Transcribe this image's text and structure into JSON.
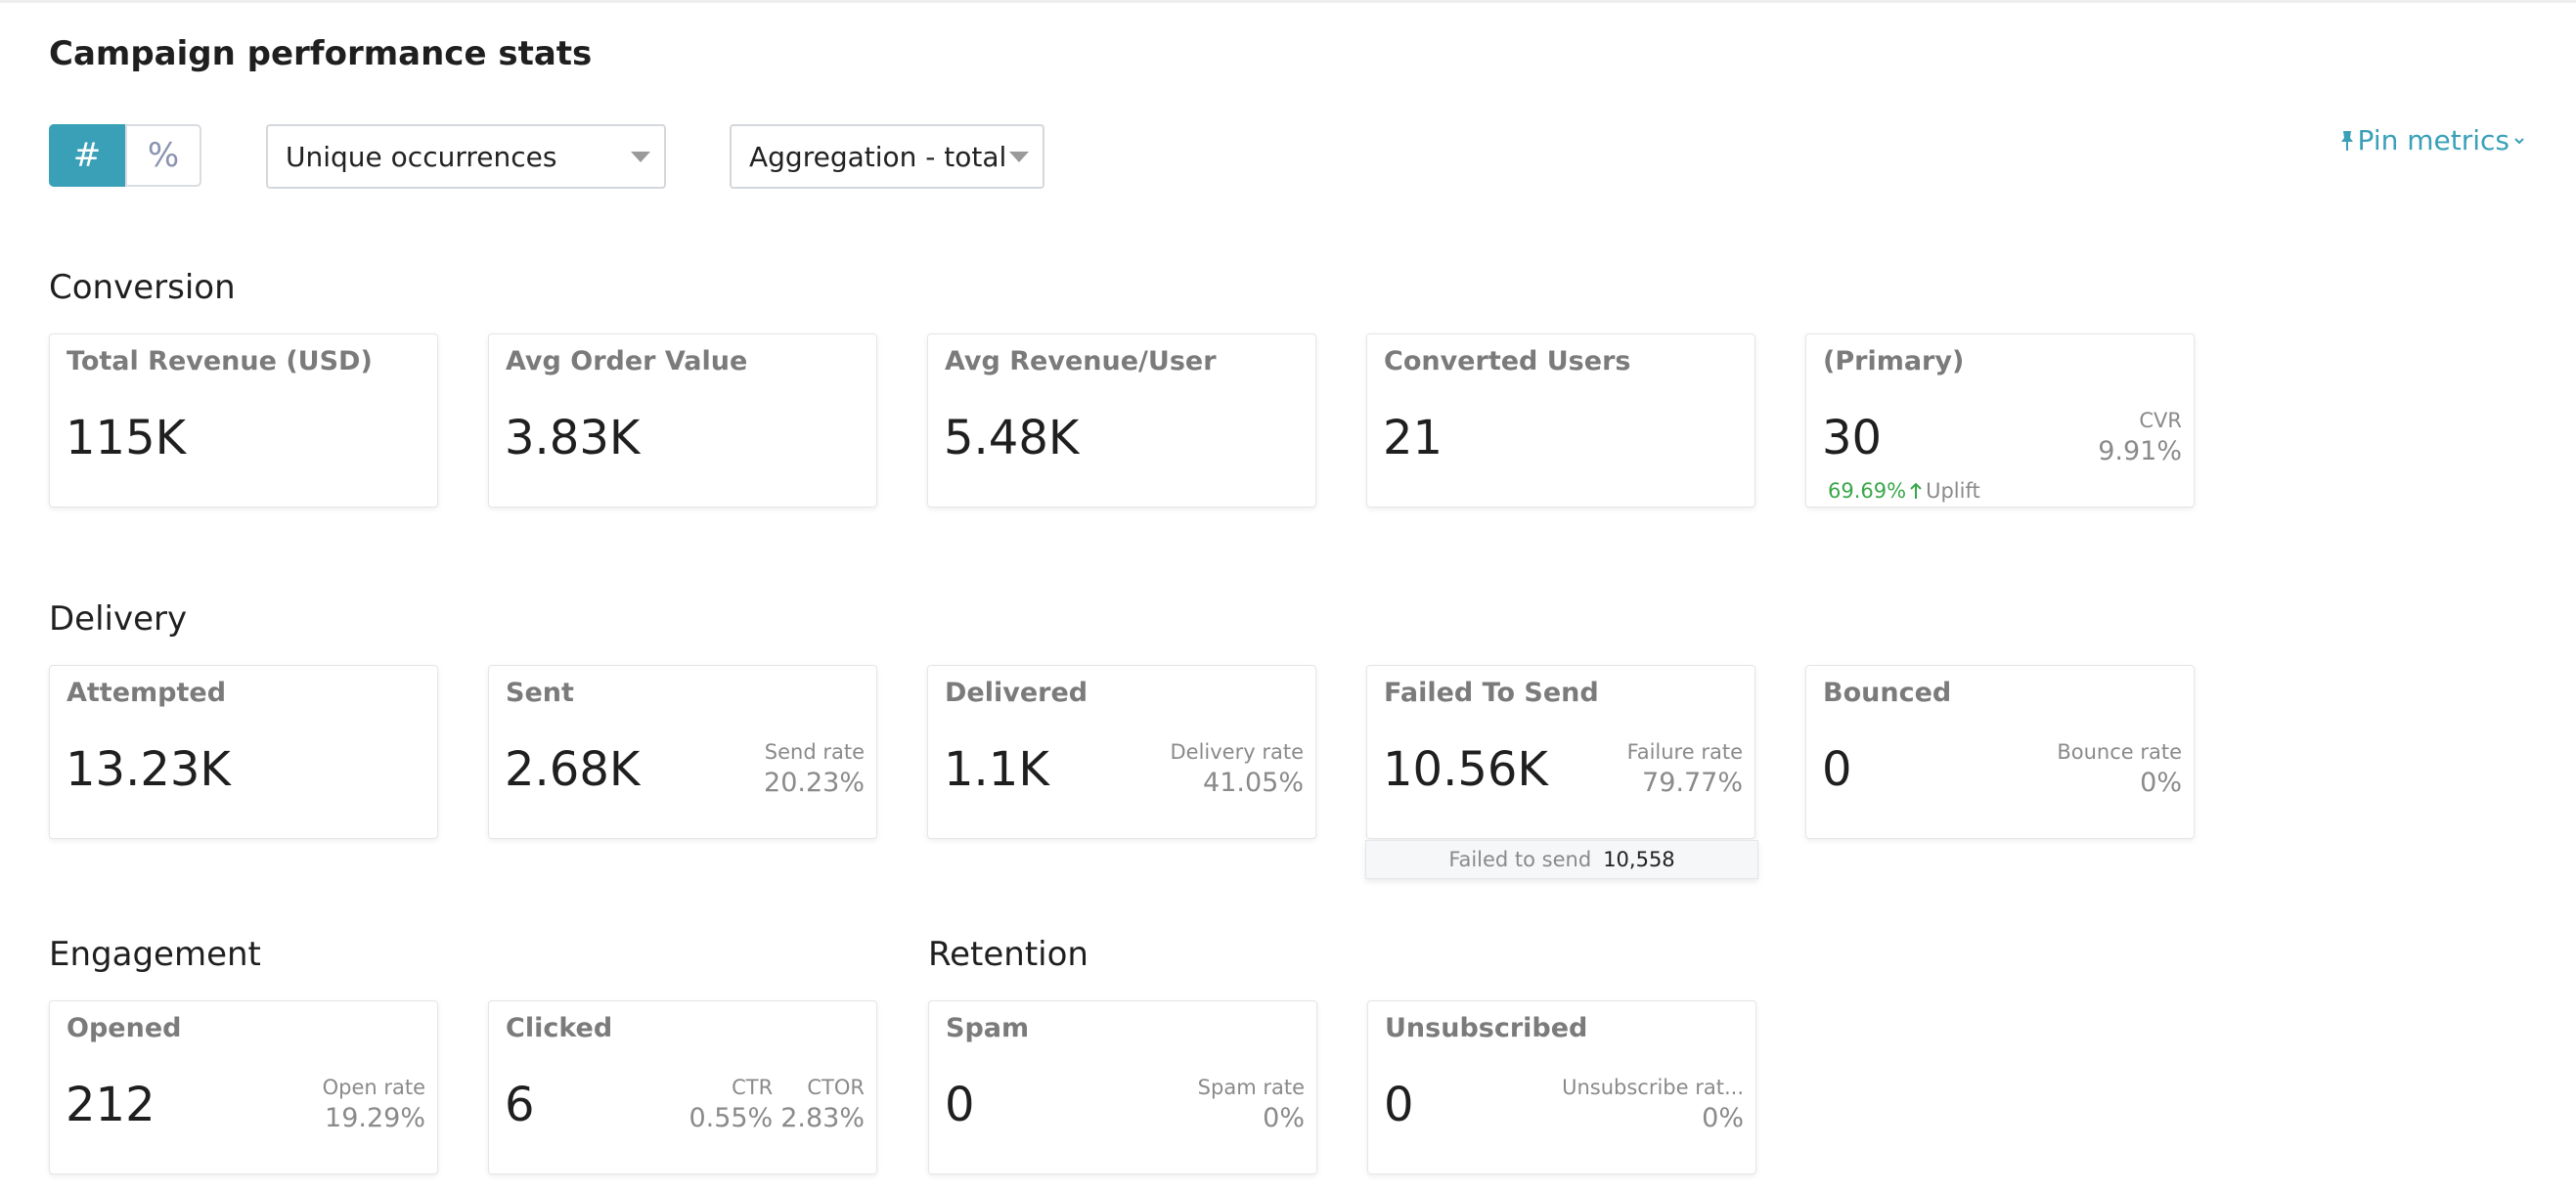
{
  "header": {
    "title": "Campaign performance stats"
  },
  "controls": {
    "toggle": [
      "#",
      "%"
    ],
    "occurrence": "Unique occurrences",
    "aggregation": "Aggregation - total",
    "pin": "Pin metrics"
  },
  "sections": [
    {
      "title": "Conversion",
      "cards": [
        {
          "label": "Total Revenue (USD)",
          "value": "115K"
        },
        {
          "label": "Avg Order Value",
          "value": "3.83K"
        },
        {
          "label": "Avg Revenue/User",
          "value": "5.48K"
        },
        {
          "label": "Converted Users",
          "value": "21"
        },
        {
          "label": "(Primary)",
          "value": "30",
          "side": [
            {
              "label": "CVR",
              "value": "9.91%"
            }
          ],
          "uplift": {
            "value": "69.69%",
            "label": "Uplift"
          }
        }
      ]
    },
    {
      "title": "Delivery",
      "cards": [
        {
          "label": "Attempted",
          "value": "13.23K"
        },
        {
          "label": "Sent",
          "value": "2.68K",
          "side": [
            {
              "label": "Send rate",
              "value": "20.23%"
            }
          ]
        },
        {
          "label": "Delivered",
          "value": "1.1K",
          "side": [
            {
              "label": "Delivery rate",
              "value": "41.05%"
            }
          ]
        },
        {
          "label": "Failed To Send",
          "value": "10.56K",
          "side": [
            {
              "label": "Failure rate",
              "value": "79.77%"
            }
          ],
          "tooltip": {
            "label": "Failed to send",
            "value": "10,558"
          }
        },
        {
          "label": "Bounced",
          "value": "0",
          "side": [
            {
              "label": "Bounce rate",
              "value": "0%"
            }
          ]
        }
      ]
    },
    {
      "title": "Engagement",
      "cards": [
        {
          "label": "Opened",
          "value": "212",
          "side": [
            {
              "label": "Open rate",
              "value": "19.29%"
            }
          ]
        },
        {
          "label": "Clicked",
          "value": "6",
          "side": [
            {
              "label": "CTR",
              "value": "0.55%"
            },
            {
              "label": "CTOR",
              "value": "2.83%"
            }
          ]
        }
      ]
    },
    {
      "title": "Retention",
      "cards": [
        {
          "label": "Spam",
          "value": "0",
          "side": [
            {
              "label": "Spam rate",
              "value": "0%"
            }
          ]
        },
        {
          "label": "Unsubscribed",
          "value": "0",
          "side": [
            {
              "label": "Unsubscribe rat...",
              "value": "0%"
            }
          ]
        }
      ]
    }
  ]
}
